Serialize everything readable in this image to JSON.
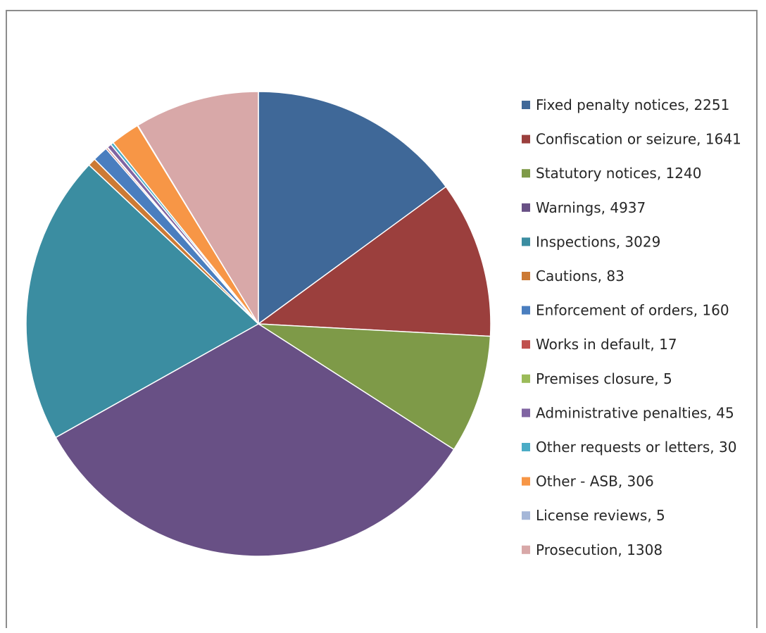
{
  "chart_data": {
    "type": "pie",
    "title": "",
    "legend_position": "right",
    "slices": [
      {
        "label": "Fixed penalty notices, 2251",
        "name": "Fixed penalty notices",
        "value": 2251,
        "color": "#3f6898"
      },
      {
        "label": "Confiscation or seizure, 1641",
        "name": "Confiscation or seizure",
        "value": 1641,
        "color": "#9b3f3d"
      },
      {
        "label": "Statutory notices, 1240",
        "name": "Statutory notices",
        "value": 1240,
        "color": "#7e9a48"
      },
      {
        "label": "Warnings, 4937",
        "name": "Warnings",
        "value": 4937,
        "color": "#685085"
      },
      {
        "label": "Inspections, 3029",
        "name": "Inspections",
        "value": 3029,
        "color": "#3b8da1"
      },
      {
        "label": "Cautions, 83",
        "name": "Cautions",
        "value": 83,
        "color": "#cc7a35"
      },
      {
        "label": "Enforcement of orders, 160",
        "name": "Enforcement of orders",
        "value": 160,
        "color": "#4a7ebf"
      },
      {
        "label": "Works in default, 17",
        "name": "Works in default",
        "value": 17,
        "color": "#c0504d"
      },
      {
        "label": "Premises closure, 5",
        "name": "Premises closure",
        "value": 5,
        "color": "#9bbb59"
      },
      {
        "label": "Administrative penalties, 45",
        "name": "Administrative penalties",
        "value": 45,
        "color": "#8064a2"
      },
      {
        "label": "Other requests or letters, 30",
        "name": "Other requests or letters",
        "value": 30,
        "color": "#4bacc6"
      },
      {
        "label": "Other - ASB, 306",
        "name": "Other - ASB",
        "value": 306,
        "color": "#f79646"
      },
      {
        "label": "License reviews, 5",
        "name": "License reviews",
        "value": 5,
        "color": "#a5b7d8"
      },
      {
        "label": "Prosecution, 1308",
        "name": "Prosecution",
        "value": 1308,
        "color": "#d8a8a8"
      }
    ]
  }
}
